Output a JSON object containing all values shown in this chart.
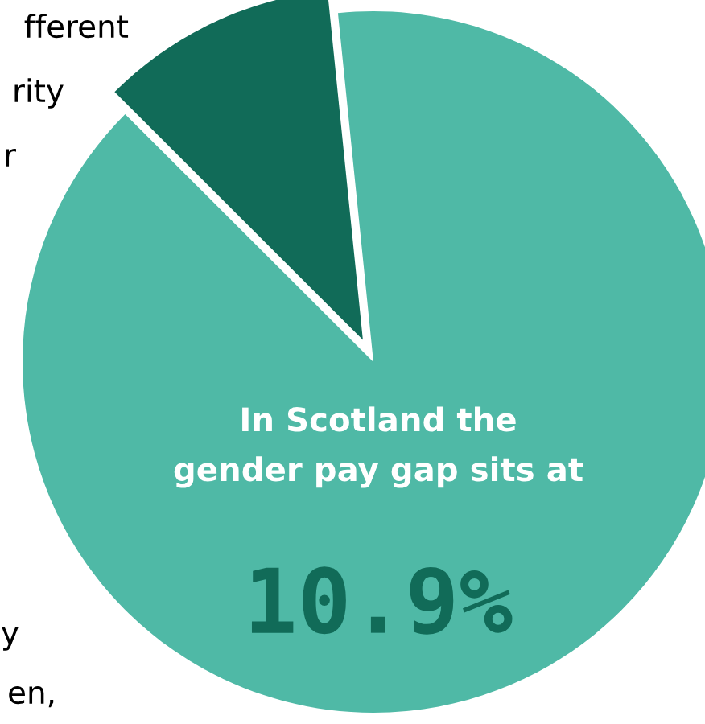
{
  "chart_data": {
    "type": "pie",
    "categories": [
      null,
      null
    ],
    "values": [
      10.9,
      89.1
    ],
    "colors": [
      "#116b58",
      "#4fb9a6"
    ],
    "annotations": [
      "In Scotland the\ngender pay gap sits at",
      "10.9%",
      "fferent",
      "rity",
      "r",
      "y",
      "en,"
    ],
    "legend": false
  }
}
